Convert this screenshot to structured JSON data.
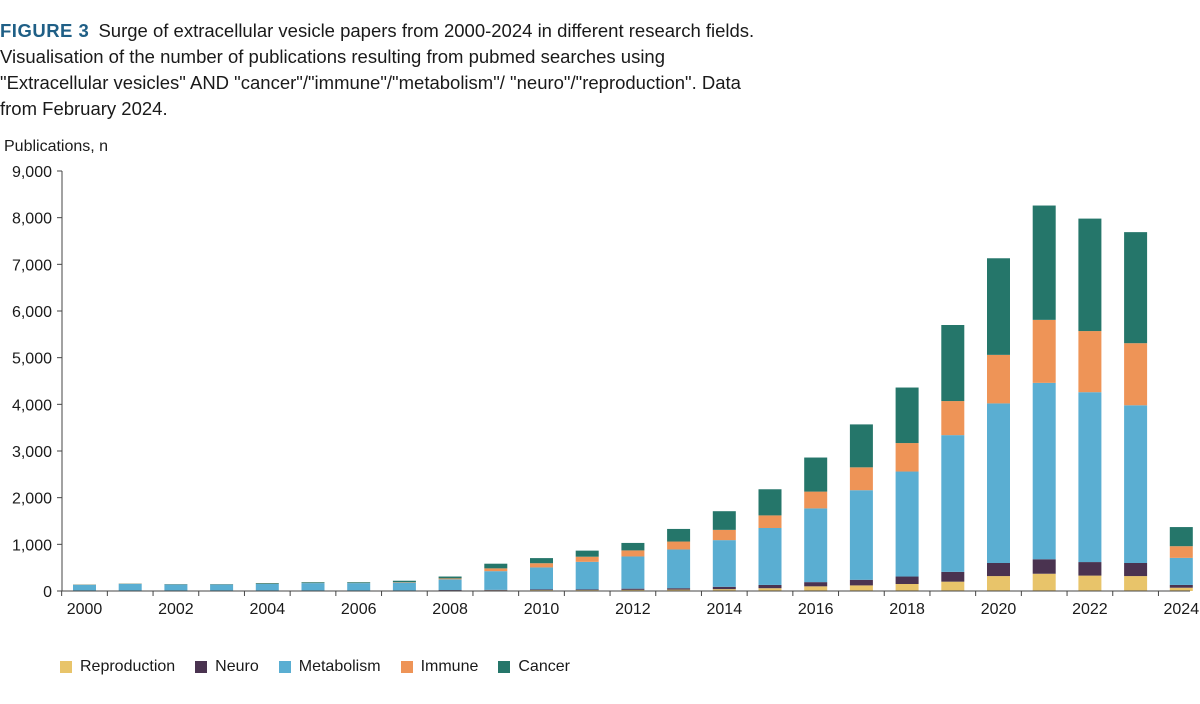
{
  "caption": {
    "label": "FIGURE 3",
    "text": "Surge of extracellular vesicle papers from 2000-2024 in different research fields. Visualisation of the number of publications resulting from pubmed searches using \"Extracellular vesicles\" AND \"cancer\"/\"immune\"/\"metabolism\"/ \"neuro\"/\"reproduction\". Data from February 2024."
  },
  "chart_data": {
    "type": "bar",
    "stacked": true,
    "ylabel": "Publications, n",
    "xlabel": "",
    "ylim": [
      0,
      9000
    ],
    "yticks": [
      "0",
      "1,000",
      "2,000",
      "3,000",
      "4,000",
      "5,000",
      "6,000",
      "7,000",
      "8,000",
      "9,000"
    ],
    "categories": [
      "2000",
      "2001",
      "2002",
      "2003",
      "2004",
      "2005",
      "2006",
      "2007",
      "2008",
      "2009",
      "2010",
      "2011",
      "2012",
      "2013",
      "2014",
      "2015",
      "2016",
      "2017",
      "2018",
      "2019",
      "2020",
      "2021",
      "2022",
      "2023",
      "2024"
    ],
    "xtick_labels": [
      "2000",
      "2002",
      "2004",
      "2006",
      "2008",
      "2010",
      "2012",
      "2014",
      "2016",
      "2018",
      "2020",
      "2022",
      "2024"
    ],
    "legend_position": "bottom-left",
    "series": [
      {
        "name": "Reproduction",
        "color": "#e8c46a",
        "values": [
          5,
          5,
          5,
          5,
          5,
          5,
          5,
          5,
          10,
          15,
          20,
          20,
          25,
          30,
          40,
          60,
          100,
          120,
          150,
          200,
          320,
          370,
          330,
          320,
          70
        ]
      },
      {
        "name": "Neuro",
        "color": "#4a3350",
        "values": [
          5,
          5,
          5,
          5,
          5,
          5,
          5,
          5,
          10,
          10,
          15,
          15,
          25,
          30,
          50,
          70,
          90,
          120,
          160,
          210,
          280,
          310,
          290,
          280,
          60
        ]
      },
      {
        "name": "Metabolism",
        "color": "#5aaed2",
        "values": [
          120,
          140,
          130,
          130,
          140,
          160,
          160,
          170,
          230,
          400,
          470,
          590,
          690,
          830,
          1000,
          1220,
          1580,
          1920,
          2250,
          2930,
          3420,
          3780,
          3640,
          3380,
          580
        ]
      },
      {
        "name": "Immune",
        "color": "#ee9457",
        "values": [
          5,
          5,
          5,
          5,
          5,
          5,
          5,
          10,
          20,
          60,
          90,
          110,
          130,
          170,
          220,
          270,
          360,
          490,
          610,
          730,
          1040,
          1350,
          1310,
          1330,
          250
        ]
      },
      {
        "name": "Cancer",
        "color": "#25766a",
        "values": [
          5,
          5,
          5,
          5,
          15,
          15,
          15,
          30,
          40,
          100,
          110,
          130,
          160,
          270,
          400,
          560,
          730,
          920,
          1190,
          1630,
          2070,
          2450,
          2410,
          2380,
          410
        ]
      }
    ]
  }
}
